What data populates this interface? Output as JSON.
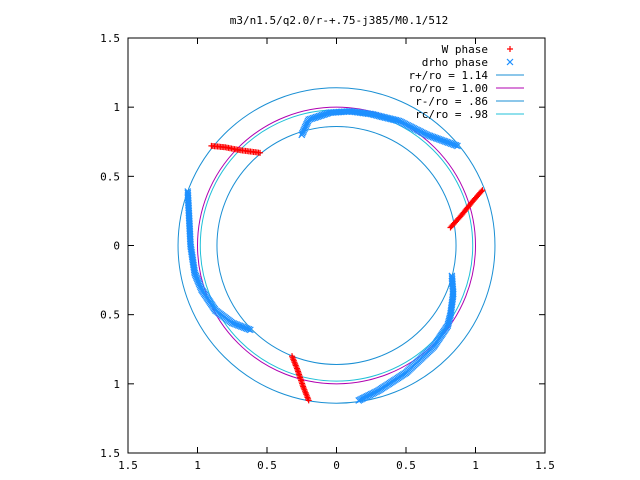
{
  "chart_data": {
    "type": "scatter",
    "title": "m3/n1.5/q2.0/r-+.75-j385/M0.1/512",
    "xlabel": "",
    "ylabel": "",
    "xlim": [
      -1.5,
      1.5
    ],
    "ylim": [
      -1.5,
      1.5
    ],
    "grid": false,
    "legend_position": "top-right",
    "x_ticks": [
      {
        "value": -1.5,
        "label": "1.5"
      },
      {
        "value": -1.0,
        "label": "1"
      },
      {
        "value": -0.5,
        "label": "0.5"
      },
      {
        "value": 0.0,
        "label": "0"
      },
      {
        "value": 0.5,
        "label": "0.5"
      },
      {
        "value": 1.0,
        "label": "1"
      },
      {
        "value": 1.5,
        "label": "1.5"
      }
    ],
    "y_ticks": [
      {
        "value": 1.5,
        "label": "1.5"
      },
      {
        "value": 1.0,
        "label": "1"
      },
      {
        "value": 0.5,
        "label": "0.5"
      },
      {
        "value": 0.0,
        "label": "0"
      },
      {
        "value": -0.5,
        "label": "0.5"
      },
      {
        "value": -1.0,
        "label": "1"
      },
      {
        "value": -1.5,
        "label": "1.5"
      }
    ],
    "series": [
      {
        "name": "W phase",
        "marker": "plus",
        "color": "#ff0000",
        "segments": [
          [
            [
              -0.9,
              0.72
            ],
            [
              -0.8,
              0.71
            ],
            [
              -0.7,
              0.69
            ],
            [
              -0.55,
              0.67
            ]
          ],
          [
            [
              0.82,
              0.13
            ],
            [
              0.9,
              0.22
            ],
            [
              0.98,
              0.32
            ],
            [
              1.05,
              0.4
            ]
          ],
          [
            [
              -0.32,
              -0.8
            ],
            [
              -0.28,
              -0.9
            ],
            [
              -0.24,
              -1.02
            ],
            [
              -0.2,
              -1.12
            ]
          ]
        ]
      },
      {
        "name": "drho phase",
        "marker": "cross",
        "color": "#1e90ff",
        "segments": [
          [
            [
              -0.25,
              0.8
            ],
            [
              -0.2,
              0.91
            ],
            [
              -0.05,
              0.96
            ],
            [
              0.1,
              0.97
            ],
            [
              0.25,
              0.95
            ],
            [
              0.45,
              0.9
            ],
            [
              0.65,
              0.8
            ],
            [
              0.87,
              0.72
            ]
          ],
          [
            [
              -1.07,
              0.39
            ],
            [
              -1.06,
              0.2
            ],
            [
              -1.05,
              0.0
            ],
            [
              -1.02,
              -0.2
            ],
            [
              -0.97,
              -0.32
            ],
            [
              -0.87,
              -0.47
            ],
            [
              -0.75,
              -0.56
            ],
            [
              -0.62,
              -0.61
            ]
          ],
          [
            [
              0.83,
              -0.22
            ],
            [
              0.84,
              -0.35
            ],
            [
              0.82,
              -0.5
            ],
            [
              0.8,
              -0.58
            ],
            [
              0.7,
              -0.73
            ],
            [
              0.5,
              -0.92
            ],
            [
              0.3,
              -1.05
            ],
            [
              0.16,
              -1.12
            ]
          ]
        ]
      },
      {
        "name": "r+/ro = 1.14",
        "type": "circle",
        "radius": 1.14,
        "color": "#1a8fd4"
      },
      {
        "name": "ro/ro = 1.00",
        "type": "circle",
        "radius": 1.0,
        "color": "#b000b0"
      },
      {
        "name": "r-/ro = .86",
        "type": "circle",
        "radius": 0.86,
        "color": "#1a8fd4"
      },
      {
        "name": "rc/ro = .98",
        "type": "circle",
        "radius": 0.98,
        "color": "#20c0d8"
      }
    ]
  }
}
